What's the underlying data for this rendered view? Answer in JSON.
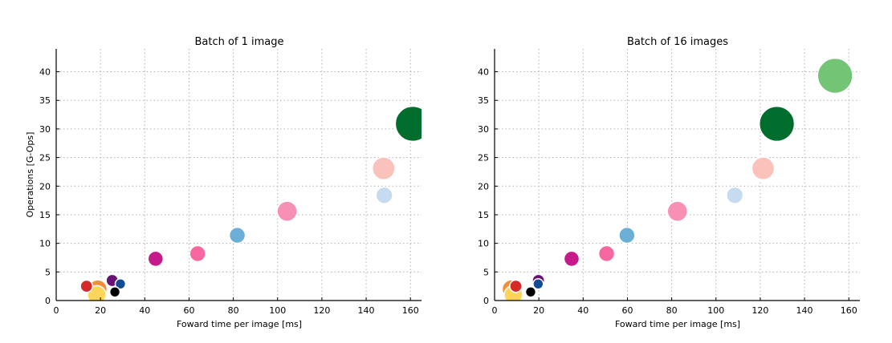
{
  "chart_data": [
    {
      "type": "scatter",
      "title": "Batch of 1 image",
      "xlabel": "Foward time per image [ms]",
      "ylabel": "Operations [G-Ops]",
      "xlim": [
        0,
        165
      ],
      "ylim": [
        0,
        44
      ],
      "xticks": [
        0,
        20,
        40,
        60,
        80,
        100,
        120,
        140,
        160
      ],
      "yticks": [
        0,
        5,
        10,
        15,
        20,
        25,
        30,
        35,
        40
      ],
      "grid": true,
      "bubble_size": "proportional to marker area",
      "points": [
        {
          "x": 18.8,
          "y": 2.0,
          "size": 0.8,
          "color": "#f28e3c"
        },
        {
          "x": 18.3,
          "y": 1.0,
          "size": 0.8,
          "color": "#fed45b"
        },
        {
          "x": 25.3,
          "y": 3.5,
          "size": 0.35,
          "color": "#6a1176"
        },
        {
          "x": 13.7,
          "y": 2.5,
          "size": 0.35,
          "color": "#d62a28"
        },
        {
          "x": 29.0,
          "y": 2.9,
          "size": 0.25,
          "color": "#104d96"
        },
        {
          "x": 26.5,
          "y": 1.5,
          "size": 0.25,
          "color": "#000000"
        },
        {
          "x": 44.9,
          "y": 7.3,
          "size": 0.55,
          "color": "#c51b8a"
        },
        {
          "x": 63.9,
          "y": 8.2,
          "size": 0.6,
          "color": "#f768a1"
        },
        {
          "x": 81.8,
          "y": 11.4,
          "size": 0.6,
          "color": "#6baed6"
        },
        {
          "x": 104.3,
          "y": 15.6,
          "size": 0.95,
          "color": "#f790b4"
        },
        {
          "x": 148.2,
          "y": 18.4,
          "size": 0.65,
          "color": "#c6dbef"
        },
        {
          "x": 147.9,
          "y": 23.1,
          "size": 1.2,
          "color": "#fbc1bb"
        },
        {
          "x": 161.1,
          "y": 30.9,
          "size": 2.9,
          "color": "#006d2c"
        }
      ]
    },
    {
      "type": "scatter",
      "title": "Batch of 16 images",
      "xlabel": "Foward time per image [ms]",
      "ylabel": "",
      "xlim": [
        0,
        165
      ],
      "ylim": [
        0,
        44
      ],
      "xticks": [
        0,
        20,
        40,
        60,
        80,
        100,
        120,
        140,
        160
      ],
      "yticks": [
        0,
        5,
        10,
        15,
        20,
        25,
        30,
        35,
        40
      ],
      "grid": true,
      "bubble_size": "proportional to marker area",
      "points": [
        {
          "x": 7.6,
          "y": 2.0,
          "size": 0.8,
          "color": "#f28e3c"
        },
        {
          "x": 8.5,
          "y": 1.0,
          "size": 0.8,
          "color": "#fed45b"
        },
        {
          "x": 19.8,
          "y": 3.5,
          "size": 0.35,
          "color": "#6a1176"
        },
        {
          "x": 9.6,
          "y": 2.5,
          "size": 0.35,
          "color": "#d62a28"
        },
        {
          "x": 19.7,
          "y": 2.9,
          "size": 0.25,
          "color": "#104d96"
        },
        {
          "x": 16.3,
          "y": 1.5,
          "size": 0.25,
          "color": "#000000"
        },
        {
          "x": 34.8,
          "y": 7.3,
          "size": 0.55,
          "color": "#c51b8a"
        },
        {
          "x": 50.6,
          "y": 8.2,
          "size": 0.6,
          "color": "#f768a1"
        },
        {
          "x": 59.8,
          "y": 11.4,
          "size": 0.6,
          "color": "#6baed6"
        },
        {
          "x": 82.6,
          "y": 15.6,
          "size": 0.95,
          "color": "#f790b4"
        },
        {
          "x": 108.5,
          "y": 18.4,
          "size": 0.65,
          "color": "#c6dbef"
        },
        {
          "x": 121.3,
          "y": 23.1,
          "size": 1.2,
          "color": "#fbc1bb"
        },
        {
          "x": 127.5,
          "y": 30.9,
          "size": 2.9,
          "color": "#006d2c"
        },
        {
          "x": 153.8,
          "y": 39.3,
          "size": 2.9,
          "color": "#74c476"
        }
      ]
    }
  ]
}
